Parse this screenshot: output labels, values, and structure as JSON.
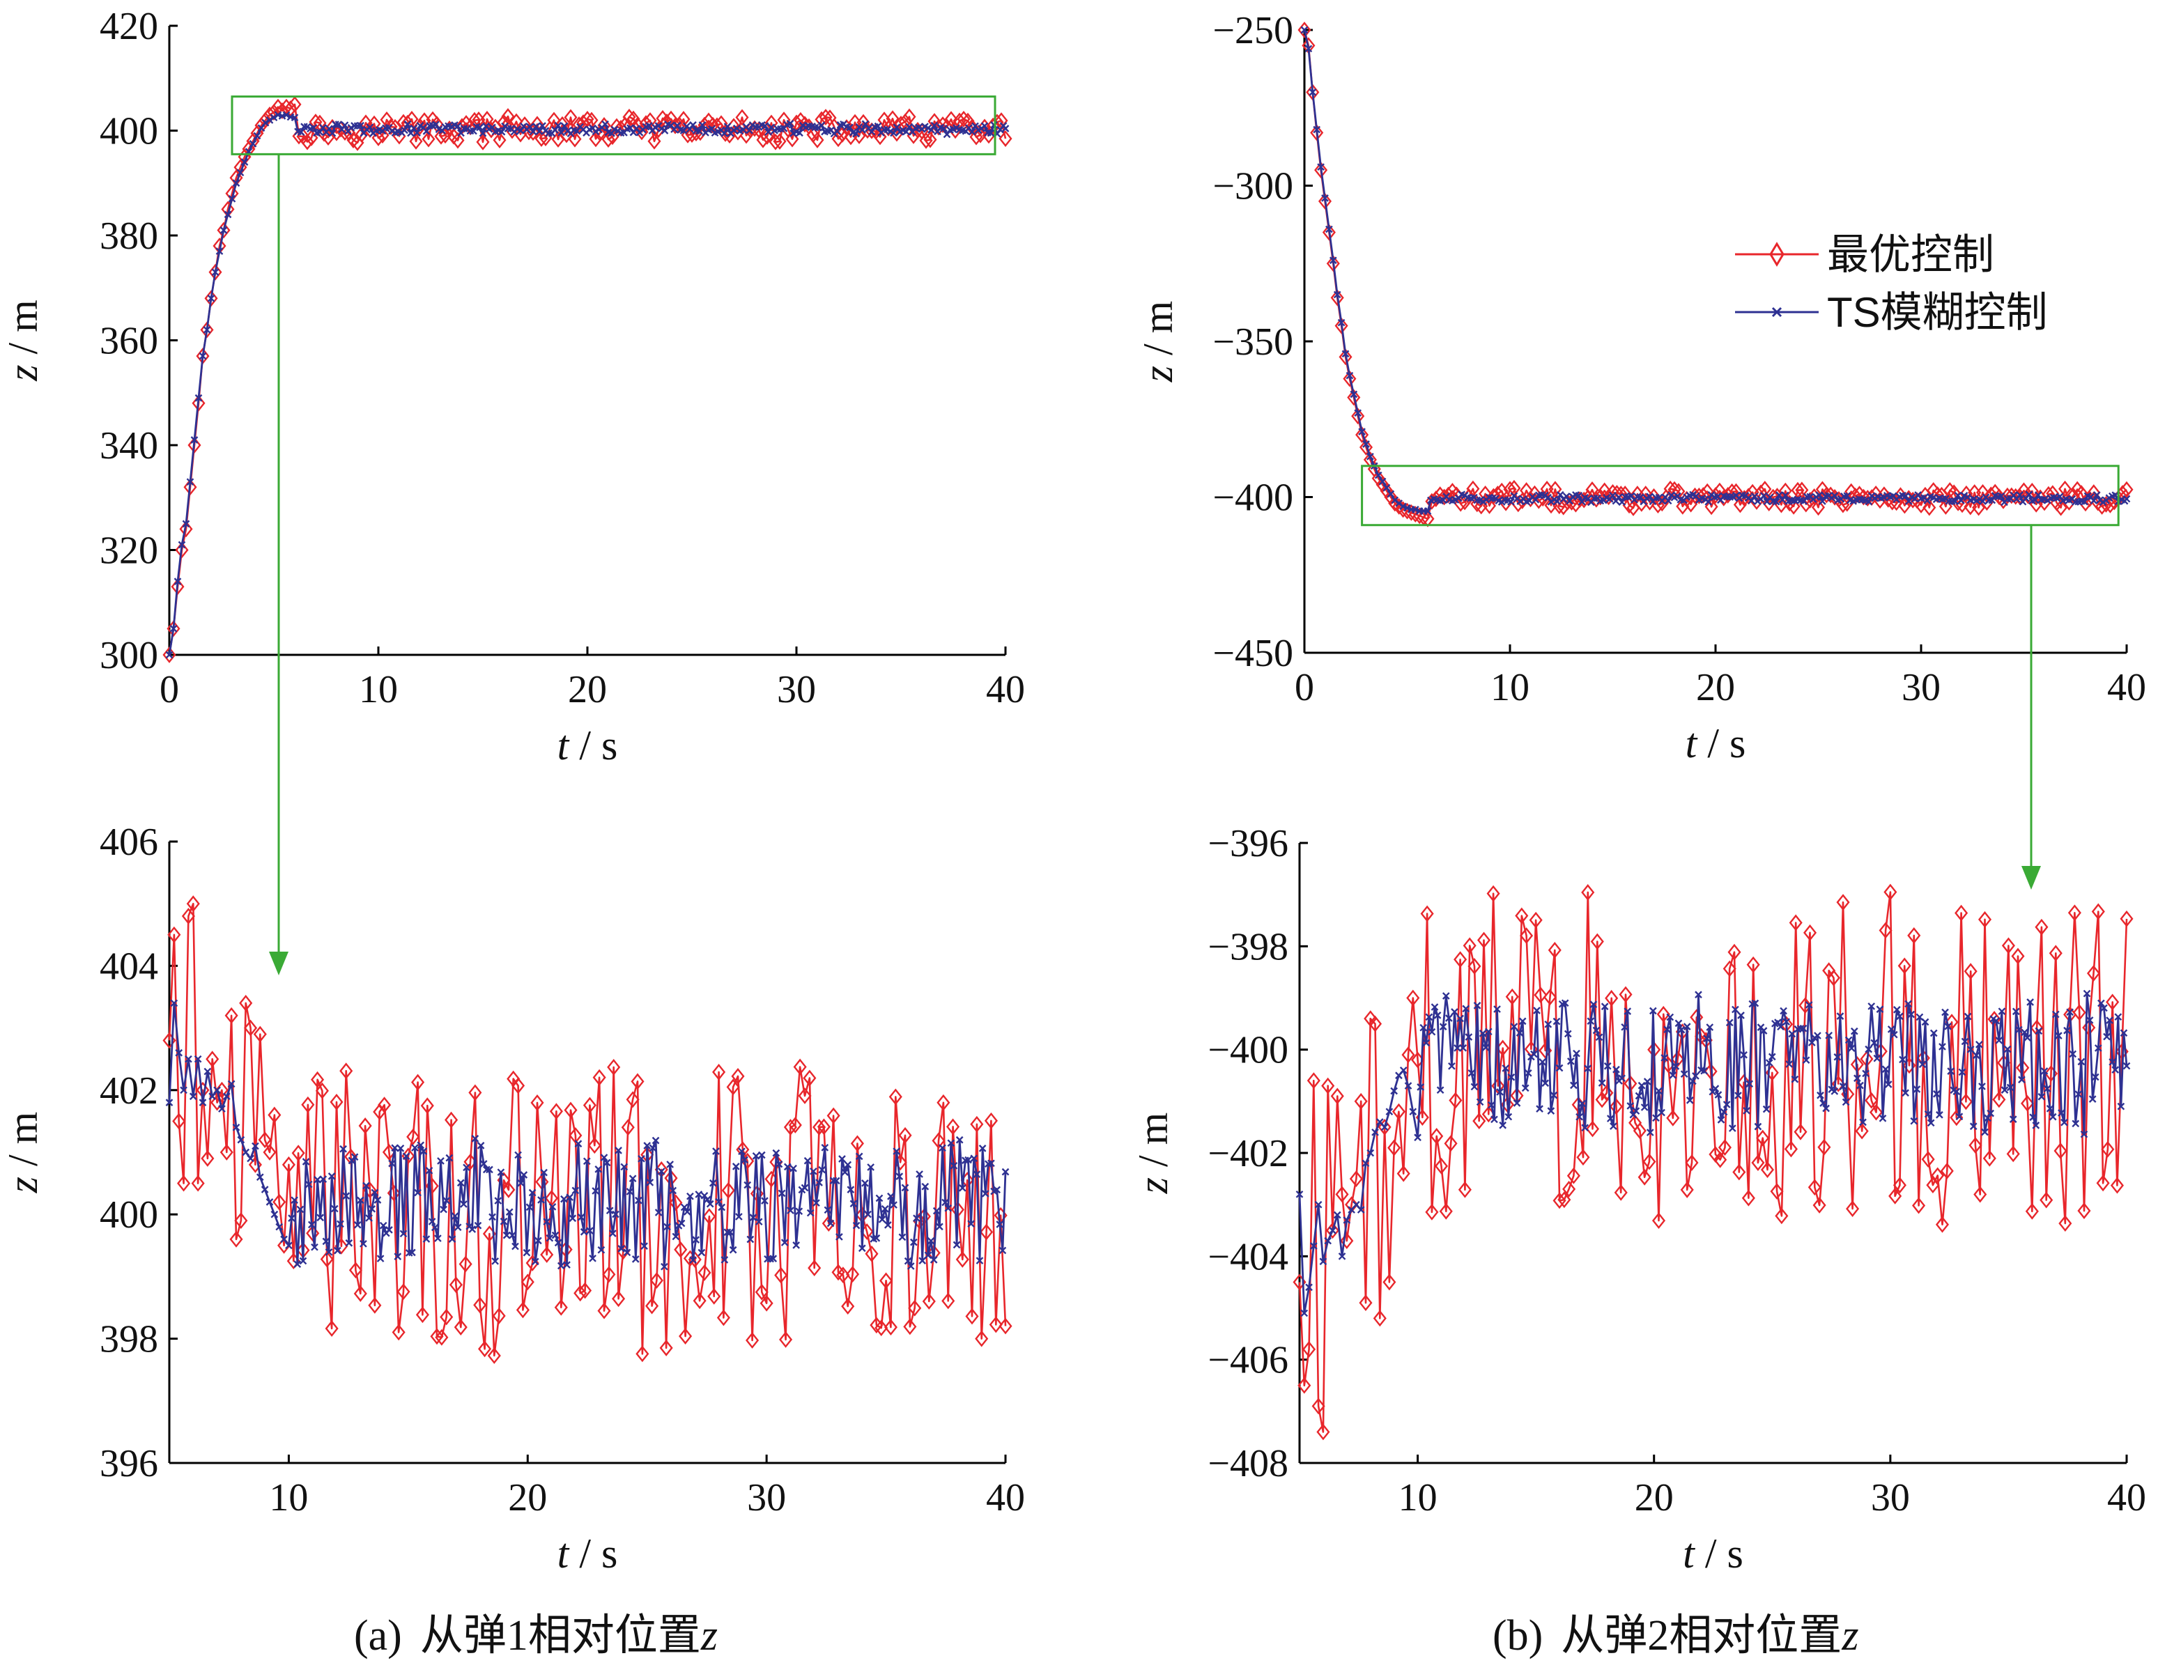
{
  "figure": {
    "captions": [
      {
        "prefix": "(a)",
        "text": "从弹1相对位置",
        "var": "z"
      },
      {
        "prefix": "(b)",
        "text": "从弹2相对位置",
        "var": "z"
      }
    ]
  },
  "legend": {
    "entries": [
      {
        "label": "最优控制",
        "color": "#e8262b",
        "marker": "diamond-icon"
      },
      {
        "label": "TS模糊控制",
        "color": "#2e3192",
        "marker": "x-icon"
      }
    ]
  },
  "colors": {
    "optimal": "#e8262b",
    "ts": "#2e3192",
    "zoom_box": "#3aaa35",
    "axis": "#000000"
  },
  "chart_data": [
    {
      "id": "a-full",
      "type": "line",
      "xlabel": {
        "var": "t",
        "unit": "s"
      },
      "ylabel": {
        "var": "z",
        "unit": "m"
      },
      "xlim": [
        0,
        40
      ],
      "ylim": [
        300,
        420
      ],
      "xticks": [
        0,
        10,
        20,
        30,
        40
      ],
      "yticks": [
        300,
        320,
        340,
        360,
        380,
        400,
        420
      ],
      "grid": false,
      "zoom_box": {
        "x": [
          3,
          39.5
        ],
        "y": [
          395.5,
          406.5
        ]
      },
      "series": [
        {
          "name": "最优控制",
          "color": "#e8262b",
          "marker": "diamond",
          "x": [
            0,
            0.2,
            0.4,
            0.6,
            0.8,
            1.0,
            1.2,
            1.4,
            1.6,
            1.8,
            2.0,
            2.2,
            2.4,
            2.6,
            2.8,
            3.0,
            3.2,
            3.4,
            3.6,
            3.8,
            4.0,
            4.2,
            4.4,
            4.6,
            4.8,
            5.0,
            5.2,
            5.4,
            5.6,
            5.8,
            6.0
          ],
          "y": [
            300,
            305,
            313,
            320,
            324,
            332,
            340,
            348,
            357,
            362,
            368,
            373,
            378,
            381,
            385,
            388,
            391,
            393,
            395,
            396.5,
            398,
            399.5,
            401,
            402,
            403,
            403.5,
            404.5,
            403.8,
            404.5,
            404.2,
            405
          ]
        },
        {
          "name": "TS模糊控制",
          "color": "#2e3192",
          "marker": "x",
          "x": [
            0,
            0.2,
            0.4,
            0.6,
            0.8,
            1.0,
            1.2,
            1.4,
            1.6,
            1.8,
            2.0,
            2.2,
            2.4,
            2.6,
            2.8,
            3.0,
            3.2,
            3.4,
            3.6,
            3.8,
            4.0,
            4.2,
            4.4,
            4.6,
            4.8,
            5.0,
            5.2,
            5.4,
            5.6,
            5.8,
            6.0
          ],
          "y": [
            300,
            305,
            314,
            321,
            325,
            333,
            341,
            349,
            357,
            362,
            368,
            373,
            377,
            381,
            384,
            387,
            390,
            392,
            394,
            396,
            397.5,
            399,
            400.5,
            401.5,
            402,
            402.5,
            403,
            402.8,
            403,
            402.6,
            402.5
          ]
        }
      ]
    },
    {
      "id": "b-full",
      "type": "line",
      "xlabel": {
        "var": "t",
        "unit": "s"
      },
      "ylabel": {
        "var": "z",
        "unit": "m"
      },
      "xlim": [
        0,
        40
      ],
      "ylim": [
        -450,
        -250
      ],
      "xticks": [
        0,
        10,
        20,
        30,
        40
      ],
      "yticks": [
        -450,
        -400,
        -350,
        -300,
        -250
      ],
      "yticklabels": [
        "−450",
        "−400",
        "−350",
        "−300",
        "−250"
      ],
      "grid": false,
      "zoom_box": {
        "x": [
          2.8,
          39.6
        ],
        "y": [
          -409,
          -390
        ]
      },
      "series": [
        {
          "name": "最优控制",
          "color": "#e8262b",
          "marker": "diamond",
          "x": [
            0,
            0.2,
            0.4,
            0.6,
            0.8,
            1.0,
            1.2,
            1.4,
            1.6,
            1.8,
            2.0,
            2.2,
            2.4,
            2.6,
            2.8,
            3.0,
            3.2,
            3.4,
            3.6,
            3.8,
            4.0,
            4.2,
            4.4,
            4.6,
            4.8,
            5.0,
            5.2,
            5.4,
            5.6,
            5.8,
            6.0
          ],
          "y": [
            -250,
            -255,
            -270,
            -283,
            -295,
            -305,
            -315,
            -325,
            -336,
            -345,
            -355,
            -362,
            -368,
            -374,
            -380,
            -384,
            -388,
            -391,
            -394,
            -396,
            -398,
            -400,
            -402,
            -403,
            -404,
            -404.5,
            -405,
            -405.5,
            -406,
            -406.5,
            -407
          ]
        },
        {
          "name": "TS模糊控制",
          "color": "#2e3192",
          "marker": "x",
          "x": [
            0,
            0.2,
            0.4,
            0.6,
            0.8,
            1.0,
            1.2,
            1.4,
            1.6,
            1.8,
            2.0,
            2.2,
            2.4,
            2.6,
            2.8,
            3.0,
            3.2,
            3.4,
            3.6,
            3.8,
            4.0,
            4.2,
            4.4,
            4.6,
            4.8,
            5.0,
            5.2,
            5.4,
            5.6,
            5.8,
            6.0
          ],
          "y": [
            -250,
            -256,
            -270,
            -282,
            -294,
            -304,
            -314,
            -324,
            -335,
            -344,
            -354,
            -361,
            -367,
            -373,
            -379,
            -383,
            -387,
            -390,
            -393,
            -395,
            -397,
            -399,
            -401,
            -402,
            -403,
            -403.5,
            -404,
            -404,
            -404.5,
            -404.5,
            -404.5
          ]
        }
      ]
    },
    {
      "id": "a-zoom",
      "type": "line",
      "xlabel": {
        "var": "t",
        "unit": "s"
      },
      "ylabel": {
        "var": "z",
        "unit": "m"
      },
      "xlim": [
        5,
        40
      ],
      "ylim": [
        396,
        406
      ],
      "xticks": [
        10,
        20,
        30,
        40
      ],
      "yticks": [
        396,
        398,
        400,
        402,
        404,
        406
      ],
      "grid": false,
      "series": [
        {
          "name": "最优控制",
          "color": "#e8262b",
          "marker": "diamond",
          "x": [
            5.0,
            5.2,
            5.4,
            5.6,
            5.8,
            6.0,
            6.2,
            6.4,
            6.6,
            6.8,
            7.0,
            7.2,
            7.4,
            7.6,
            7.8,
            8.0,
            8.2,
            8.4,
            8.6,
            8.8,
            9.0,
            9.2,
            9.4,
            9.6,
            9.8,
            10.0
          ],
          "y": [
            402.8,
            404.5,
            401.5,
            400.5,
            404.8,
            405.0,
            400.5,
            402.0,
            400.9,
            402.5,
            401.8,
            402.0,
            401.0,
            403.2,
            399.6,
            399.9,
            403.4,
            403.0,
            400.8,
            402.9,
            401.2,
            401.0,
            401.6,
            400.2,
            399.5,
            400.8
          ]
        },
        {
          "name": "TS模糊控制",
          "color": "#2e3192",
          "marker": "x",
          "x": [
            5.0,
            5.2,
            5.4,
            5.6,
            5.8,
            6.0,
            6.2,
            6.4,
            6.6,
            6.8,
            7.0,
            7.2,
            7.4,
            7.6,
            7.8,
            8.0,
            8.2,
            8.4,
            8.6,
            8.8,
            9.0,
            9.2,
            9.4,
            9.6,
            9.8,
            10.0
          ],
          "y": [
            401.8,
            403.4,
            402.6,
            402.0,
            402.5,
            401.9,
            402.5,
            401.8,
            402.3,
            401.9,
            402.0,
            401.7,
            401.9,
            402.1,
            401.4,
            401.2,
            401.0,
            400.9,
            401.1,
            400.6,
            400.4,
            400.2,
            400.0,
            399.8,
            399.6,
            399.5
          ]
        }
      ]
    },
    {
      "id": "b-zoom",
      "type": "line",
      "xlabel": {
        "var": "t",
        "unit": "s"
      },
      "ylabel": {
        "var": "z",
        "unit": "m"
      },
      "xlim": [
        5,
        40
      ],
      "ylim": [
        -408,
        -396
      ],
      "xticks": [
        10,
        20,
        30,
        40
      ],
      "yticks": [
        -408,
        -406,
        -404,
        -402,
        -400,
        -398,
        -396
      ],
      "yticklabels": [
        "−408",
        "−406",
        "−404",
        "−402",
        "−400",
        "−398",
        "−396"
      ],
      "grid": false,
      "series": [
        {
          "name": "最优控制",
          "color": "#e8262b",
          "marker": "diamond",
          "x": [
            5.0,
            5.2,
            5.4,
            5.6,
            5.8,
            6.0,
            6.2,
            6.4,
            6.6,
            6.8,
            7.0,
            7.2,
            7.4,
            7.6,
            7.8,
            8.0,
            8.2,
            8.4,
            8.6,
            8.8,
            9.0,
            9.2,
            9.4,
            9.6,
            9.8,
            10.0
          ],
          "y": [
            -404.5,
            -406.5,
            -405.8,
            -400.6,
            -406.9,
            -407.4,
            -400.7,
            -403.5,
            -400.9,
            -402.8,
            -403.7,
            -403.0,
            -402.5,
            -401.0,
            -404.9,
            -399.4,
            -399.5,
            -405.2,
            -401.5,
            -404.5,
            -401.9,
            -401.2,
            -402.4,
            -400.1,
            -399.0,
            -400.2
          ]
        },
        {
          "name": "TS模糊控制",
          "color": "#2e3192",
          "marker": "x",
          "x": [
            5.0,
            5.2,
            5.4,
            5.6,
            5.8,
            6.0,
            6.2,
            6.4,
            6.6,
            6.8,
            7.0,
            7.2,
            7.4,
            7.6,
            7.8,
            8.0,
            8.2,
            8.4,
            8.6,
            8.8,
            9.0,
            9.2,
            9.4,
            9.6,
            9.8,
            10.0
          ],
          "y": [
            -402.8,
            -405.1,
            -404.6,
            -403.8,
            -403.0,
            -404.1,
            -403.7,
            -403.5,
            -403.2,
            -404.0,
            -403.3,
            -403.1,
            -403.0,
            -403.1,
            -402.2,
            -402.0,
            -401.6,
            -401.4,
            -401.5,
            -401.2,
            -400.8,
            -400.5,
            -400.4,
            -400.7,
            -401.2,
            -401.7
          ]
        }
      ]
    }
  ]
}
